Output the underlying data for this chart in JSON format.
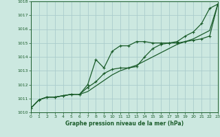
{
  "title": "Graphe pression niveau de la mer (hPa)",
  "bg_color": "#cce8e0",
  "grid_color": "#aacccc",
  "line_color": "#1a5c2a",
  "x_min": 0,
  "x_max": 23,
  "y_min": 1010,
  "y_max": 1018,
  "series1_y": [
    1010.3,
    1010.9,
    1011.1,
    1011.1,
    1011.2,
    1011.3,
    1011.3,
    1012.0,
    1013.8,
    1013.2,
    1014.4,
    1014.8,
    1014.8,
    1015.1,
    1015.1,
    1015.0,
    1015.0,
    1015.0,
    1015.1,
    1015.5,
    1015.8,
    1016.4,
    1017.5,
    1017.8
  ],
  "series2_y": [
    1010.3,
    1010.9,
    1011.1,
    1011.1,
    1011.2,
    1011.3,
    1011.3,
    1011.8,
    1012.2,
    1012.8,
    1013.1,
    1013.2,
    1013.2,
    1013.3,
    1014.0,
    1014.6,
    1014.9,
    1015.0,
    1015.0,
    1015.1,
    1015.2,
    1015.3,
    1015.5,
    1017.8
  ],
  "series3_y": [
    1010.3,
    1010.9,
    1011.1,
    1011.1,
    1011.2,
    1011.3,
    1011.3,
    1011.5,
    1011.9,
    1012.3,
    1012.7,
    1013.0,
    1013.2,
    1013.4,
    1013.7,
    1014.0,
    1014.3,
    1014.6,
    1014.9,
    1015.1,
    1015.3,
    1015.6,
    1015.9,
    1017.8
  ]
}
